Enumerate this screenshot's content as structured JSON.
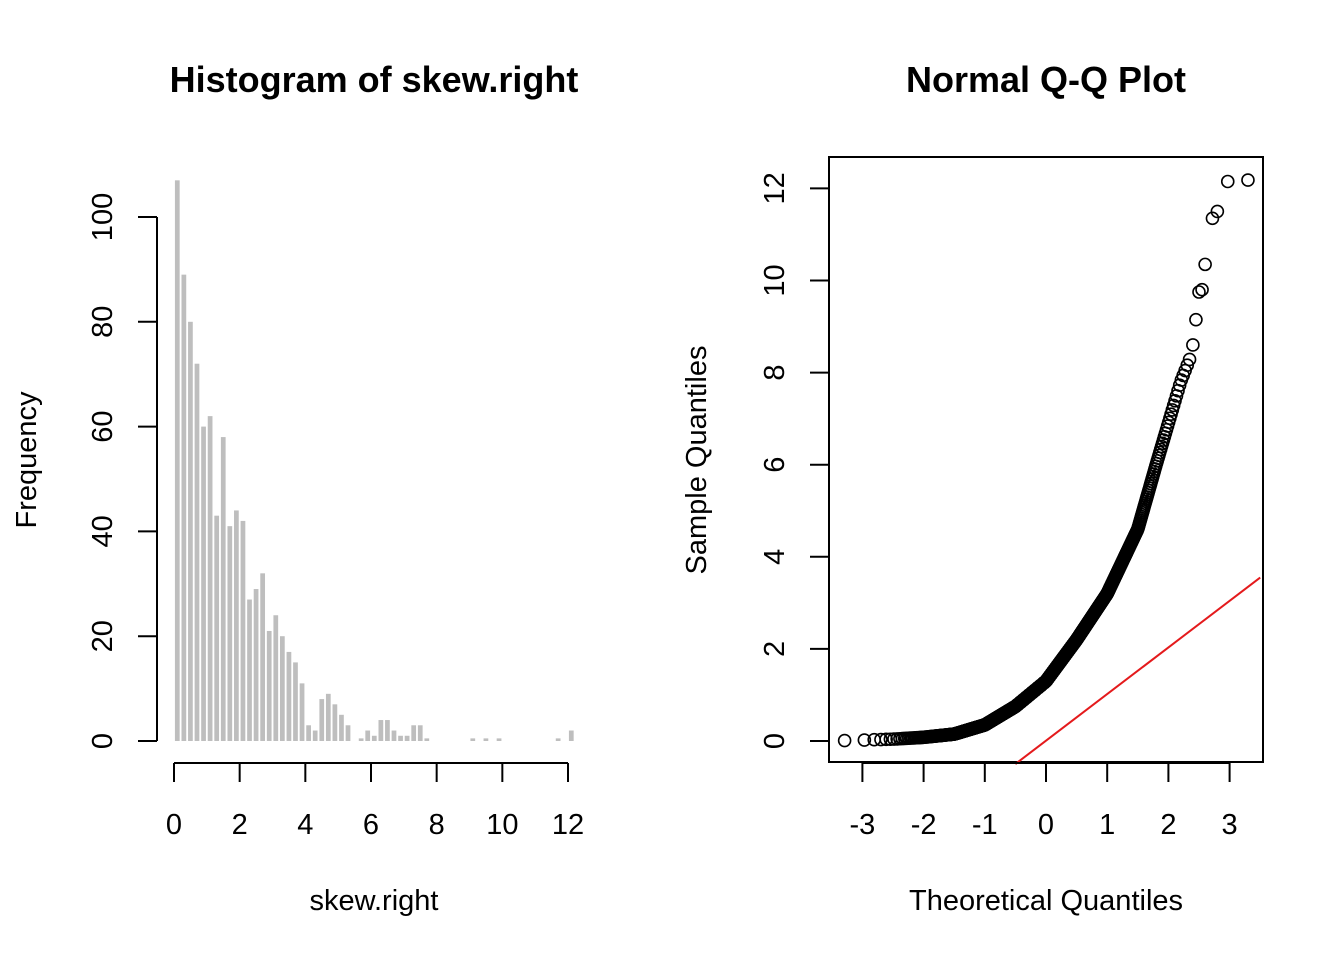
{
  "chart_data": [
    {
      "type": "bar",
      "title": "Histogram of skew.right",
      "xlabel": "skew.right",
      "ylabel": "Frequency",
      "xlim": [
        0,
        12
      ],
      "ylim": [
        0,
        110
      ],
      "xticks": [
        "0",
        "2",
        "4",
        "6",
        "8",
        "10",
        "12"
      ],
      "yticks": [
        "0",
        "20",
        "40",
        "60",
        "80",
        "100"
      ],
      "bin_width": 0.2,
      "bin_start": 0,
      "bar_color": "#bebebe",
      "values": [
        107,
        89,
        80,
        72,
        60,
        62,
        43,
        58,
        41,
        44,
        42,
        27,
        29,
        32,
        21,
        24,
        20,
        17,
        15,
        11,
        3,
        2,
        8,
        9,
        7,
        5,
        3,
        0,
        0.5,
        2,
        1,
        4,
        4,
        2,
        1,
        1,
        3,
        3,
        0.5,
        0,
        0,
        0,
        0,
        0,
        0,
        0.5,
        0,
        0.5,
        0,
        0.5,
        0,
        0,
        0,
        0,
        0,
        0,
        0,
        0,
        0.5,
        0,
        2
      ]
    },
    {
      "type": "scatter",
      "title": "Normal Q-Q Plot",
      "xlabel": "Theoretical Quantiles",
      "ylabel": "Sample Quantiles",
      "xlim": [
        -3.5,
        3.5
      ],
      "ylim": [
        -0.5,
        12.6
      ],
      "xticks": [
        "-3",
        "-2",
        "-1",
        "0",
        "1",
        "2",
        "3"
      ],
      "yticks": [
        "0",
        "2",
        "4",
        "6",
        "8",
        "10",
        "12"
      ],
      "point_marker": "open-circle",
      "reference_line": {
        "color": "#e41a1c",
        "points": [
          [
            -0.5,
            -0.5
          ],
          [
            3.5,
            3.55
          ]
        ]
      },
      "n_points": 1000,
      "curve": [
        [
          -3.3,
          0.01
        ],
        [
          -3.0,
          0.02
        ],
        [
          -2.5,
          0.04
        ],
        [
          -2.0,
          0.08
        ],
        [
          -1.5,
          0.15
        ],
        [
          -1.0,
          0.35
        ],
        [
          -0.5,
          0.75
        ],
        [
          0.0,
          1.3
        ],
        [
          0.5,
          2.2
        ],
        [
          1.0,
          3.2
        ],
        [
          1.5,
          4.6
        ],
        [
          1.8,
          6.0
        ],
        [
          2.0,
          6.9
        ],
        [
          2.2,
          7.8
        ],
        [
          2.35,
          8.3
        ]
      ],
      "tail_points": [
        [
          2.4,
          8.6
        ],
        [
          2.45,
          9.15
        ],
        [
          2.5,
          9.75
        ],
        [
          2.55,
          9.8
        ],
        [
          2.6,
          10.35
        ],
        [
          2.72,
          11.35
        ],
        [
          2.8,
          11.5
        ],
        [
          2.97,
          12.15
        ],
        [
          3.3,
          12.18
        ]
      ]
    }
  ]
}
